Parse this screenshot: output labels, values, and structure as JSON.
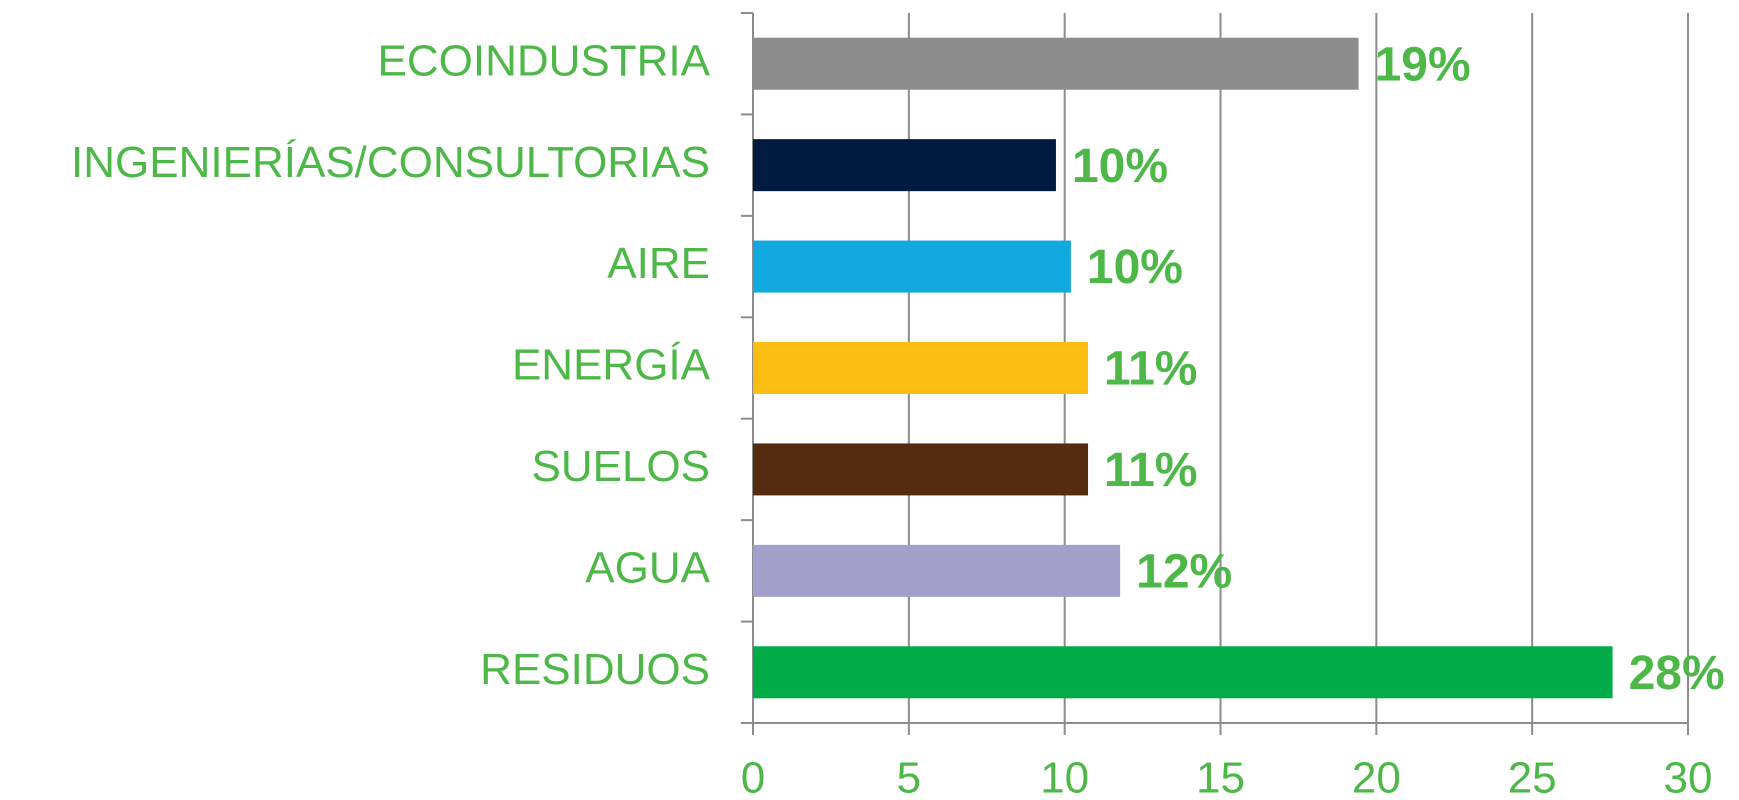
{
  "chart_data": {
    "type": "bar",
    "categories": [
      "ECOINDUSTRIA",
      "INGENIERÍAS/CONSULTORIAS",
      "AIRE",
      "ENERGÍA",
      "SUELOS",
      "AGUA",
      "RESIDUOS"
    ],
    "values": [
      19.43,
      9.72,
      10.2,
      10.75,
      10.75,
      11.78,
      27.58
    ],
    "value_labels": [
      "19%",
      "10%",
      "10%",
      "11%",
      "11%",
      "12%",
      "28%"
    ],
    "colors": [
      "#8c8c8c",
      "#001a40",
      "#12a9e0",
      "#fbbd12",
      "#542d10",
      "#a29fcb",
      "#00ab48"
    ],
    "xlim": [
      0,
      30
    ],
    "xticks": [
      0,
      5,
      10,
      15,
      20,
      25,
      30
    ],
    "grid": true
  }
}
